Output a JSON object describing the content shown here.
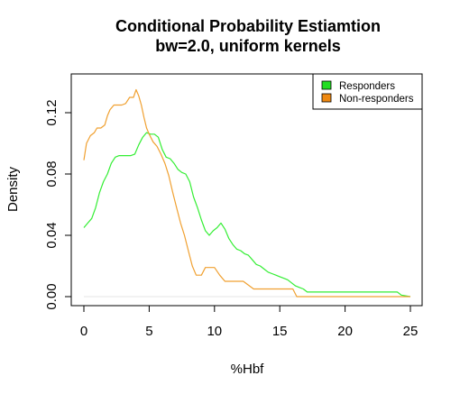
{
  "chart_data": {
    "type": "line",
    "title": "Conditional Probability Estiamtion",
    "subtitle": "bw=2.0, uniform kernels",
    "xlabel": "%Hbf",
    "ylabel": "Density",
    "xlim": [
      0,
      25
    ],
    "ylim": [
      0,
      0.14
    ],
    "x_ticks": [
      "0",
      "5",
      "10",
      "15",
      "20",
      "25"
    ],
    "y_ticks": [
      "0.00",
      "0.04",
      "0.08",
      "0.12"
    ],
    "x_tick_values": [
      0,
      5,
      10,
      15,
      20,
      25
    ],
    "y_tick_values": [
      0,
      0.04,
      0.08,
      0.12
    ],
    "legend_position": "top-right",
    "grid": false,
    "series": [
      {
        "name": "Responders",
        "color": "#33ee33",
        "legend_fill": "#22dd22",
        "points": [
          [
            0.0,
            0.045
          ],
          [
            0.3,
            0.048
          ],
          [
            0.6,
            0.051
          ],
          [
            0.9,
            0.058
          ],
          [
            1.2,
            0.068
          ],
          [
            1.5,
            0.075
          ],
          [
            1.8,
            0.08
          ],
          [
            2.1,
            0.087
          ],
          [
            2.4,
            0.091
          ],
          [
            2.7,
            0.092
          ],
          [
            3.0,
            0.092
          ],
          [
            3.3,
            0.092
          ],
          [
            3.6,
            0.092
          ],
          [
            3.9,
            0.093
          ],
          [
            4.2,
            0.099
          ],
          [
            4.5,
            0.104
          ],
          [
            4.8,
            0.107
          ],
          [
            5.1,
            0.106
          ],
          [
            5.4,
            0.106
          ],
          [
            5.7,
            0.104
          ],
          [
            6.0,
            0.096
          ],
          [
            6.3,
            0.091
          ],
          [
            6.6,
            0.09
          ],
          [
            6.9,
            0.087
          ],
          [
            7.2,
            0.083
          ],
          [
            7.5,
            0.081
          ],
          [
            7.8,
            0.08
          ],
          [
            8.1,
            0.075
          ],
          [
            8.4,
            0.065
          ],
          [
            8.7,
            0.058
          ],
          [
            9.0,
            0.05
          ],
          [
            9.3,
            0.043
          ],
          [
            9.6,
            0.04
          ],
          [
            9.9,
            0.043
          ],
          [
            10.2,
            0.045
          ],
          [
            10.5,
            0.048
          ],
          [
            10.8,
            0.044
          ],
          [
            11.1,
            0.038
          ],
          [
            11.4,
            0.034
          ],
          [
            11.7,
            0.031
          ],
          [
            12.0,
            0.03
          ],
          [
            12.3,
            0.028
          ],
          [
            12.6,
            0.027
          ],
          [
            12.9,
            0.024
          ],
          [
            13.2,
            0.021
          ],
          [
            13.5,
            0.02
          ],
          [
            13.8,
            0.018
          ],
          [
            14.1,
            0.016
          ],
          [
            14.4,
            0.015
          ],
          [
            14.7,
            0.014
          ],
          [
            15.0,
            0.013
          ],
          [
            15.3,
            0.012
          ],
          [
            15.6,
            0.011
          ],
          [
            15.9,
            0.009
          ],
          [
            16.2,
            0.007
          ],
          [
            16.5,
            0.006
          ],
          [
            16.8,
            0.005
          ],
          [
            17.1,
            0.003
          ],
          [
            18.0,
            0.003
          ],
          [
            20.0,
            0.003
          ],
          [
            22.0,
            0.003
          ],
          [
            24.0,
            0.003
          ],
          [
            24.3,
            0.001
          ],
          [
            25.0,
            0.0
          ]
        ]
      },
      {
        "name": "Non-responders",
        "color": "#f0a030",
        "legend_fill": "#ee8811",
        "points": [
          [
            0.0,
            0.089
          ],
          [
            0.2,
            0.1
          ],
          [
            0.5,
            0.105
          ],
          [
            0.8,
            0.107
          ],
          [
            1.0,
            0.11
          ],
          [
            1.3,
            0.11
          ],
          [
            1.6,
            0.112
          ],
          [
            1.8,
            0.118
          ],
          [
            2.0,
            0.122
          ],
          [
            2.3,
            0.125
          ],
          [
            2.6,
            0.125
          ],
          [
            2.9,
            0.125
          ],
          [
            3.2,
            0.126
          ],
          [
            3.5,
            0.13
          ],
          [
            3.8,
            0.13
          ],
          [
            4.0,
            0.135
          ],
          [
            4.2,
            0.131
          ],
          [
            4.4,
            0.125
          ],
          [
            4.6,
            0.117
          ],
          [
            4.8,
            0.11
          ],
          [
            5.0,
            0.106
          ],
          [
            5.3,
            0.101
          ],
          [
            5.6,
            0.098
          ],
          [
            5.9,
            0.093
          ],
          [
            6.2,
            0.087
          ],
          [
            6.5,
            0.079
          ],
          [
            6.8,
            0.068
          ],
          [
            7.1,
            0.058
          ],
          [
            7.4,
            0.048
          ],
          [
            7.7,
            0.04
          ],
          [
            8.0,
            0.03
          ],
          [
            8.3,
            0.02
          ],
          [
            8.6,
            0.014
          ],
          [
            9.0,
            0.014
          ],
          [
            9.3,
            0.019
          ],
          [
            9.7,
            0.019
          ],
          [
            10.0,
            0.019
          ],
          [
            10.4,
            0.014
          ],
          [
            10.8,
            0.01
          ],
          [
            11.5,
            0.01
          ],
          [
            12.2,
            0.01
          ],
          [
            13.0,
            0.005
          ],
          [
            14.0,
            0.005
          ],
          [
            15.0,
            0.005
          ],
          [
            16.0,
            0.005
          ],
          [
            16.3,
            0.0
          ],
          [
            18.0,
            0.0
          ],
          [
            20.0,
            0.0
          ],
          [
            22.0,
            0.0
          ],
          [
            24.0,
            0.0
          ],
          [
            25.0,
            0.0
          ]
        ]
      }
    ]
  }
}
